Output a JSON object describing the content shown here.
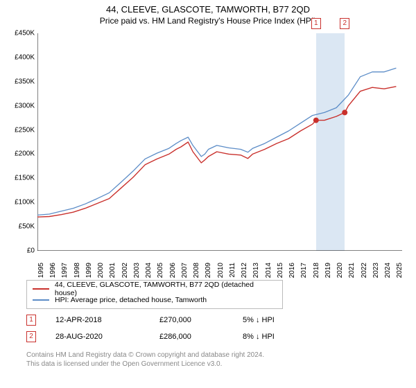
{
  "title": {
    "line1": "44, CLEEVE, GLASCOTE, TAMWORTH, B77 2QD",
    "line2": "Price paid vs. HM Land Registry's House Price Index (HPI)"
  },
  "chart": {
    "type": "line",
    "background_color": "#ffffff",
    "highlight_band_color": "#dbe7f3",
    "highlight_band_x": [
      2018.3,
      2020.7
    ],
    "xlim": [
      1995,
      2025.5
    ],
    "ylim": [
      0,
      450000
    ],
    "ytick_step": 50000,
    "yticks": [
      "£0",
      "£50K",
      "£100K",
      "£150K",
      "£200K",
      "£250K",
      "£300K",
      "£350K",
      "£400K",
      "£450K"
    ],
    "xticks": [
      "1995",
      "1996",
      "1997",
      "1998",
      "1999",
      "2000",
      "2001",
      "2002",
      "2003",
      "2004",
      "2005",
      "2006",
      "2007",
      "2008",
      "2009",
      "2010",
      "2011",
      "2012",
      "2013",
      "2014",
      "2015",
      "2016",
      "2017",
      "2018",
      "2019",
      "2020",
      "2021",
      "2022",
      "2023",
      "2024",
      "2025"
    ],
    "axis_color": "#000000",
    "axis_width": 1,
    "grid": false,
    "tick_fontsize": 10,
    "title_fontsize": 13,
    "subtitle_fontsize": 12,
    "series": {
      "red": {
        "label": "44, CLEEVE, GLASCOTE, TAMWORTH, B77 2QD (detached house)",
        "color": "#c9302c",
        "line_width": 1.4,
        "years": [
          1995,
          1996,
          1997,
          1998,
          1999,
          2000,
          2001,
          2002,
          2003,
          2004,
          2005,
          2006,
          2006.6,
          2007,
          2007.6,
          2008,
          2008.7,
          2009,
          2009.3,
          2010,
          2011,
          2012,
          2012.6,
          2013,
          2014,
          2015,
          2016,
          2017,
          2018,
          2018.3,
          2019,
          2020,
          2020.7,
          2021,
          2022,
          2023,
          2024,
          2025
        ],
        "values": [
          70000,
          71000,
          75000,
          80000,
          88000,
          98000,
          108000,
          130000,
          152000,
          178000,
          190000,
          200000,
          210000,
          215000,
          225000,
          205000,
          182000,
          188000,
          195000,
          205000,
          200000,
          198000,
          191000,
          200000,
          210000,
          222000,
          232000,
          248000,
          262000,
          270000,
          270000,
          278000,
          286000,
          300000,
          330000,
          338000,
          335000,
          340000
        ]
      },
      "blue": {
        "label": "HPI: Average price, detached house, Tamworth",
        "color": "#5b8cc7",
        "line_width": 1.3,
        "years": [
          1995,
          1996,
          1997,
          1998,
          1999,
          2000,
          2001,
          2002,
          2003,
          2004,
          2005,
          2006,
          2006.6,
          2007,
          2007.6,
          2008,
          2008.7,
          2009,
          2009.3,
          2010,
          2011,
          2012,
          2012.6,
          2013,
          2014,
          2015,
          2016,
          2017,
          2018,
          2019,
          2020,
          2021,
          2022,
          2023,
          2024,
          2025
        ],
        "values": [
          74000,
          76000,
          82000,
          88000,
          97000,
          108000,
          120000,
          142000,
          165000,
          190000,
          202000,
          212000,
          222000,
          228000,
          235000,
          218000,
          195000,
          200000,
          210000,
          218000,
          213000,
          210000,
          204000,
          212000,
          222000,
          235000,
          248000,
          264000,
          280000,
          286000,
          296000,
          322000,
          360000,
          370000,
          370000,
          378000
        ]
      }
    },
    "sale_markers": [
      {
        "num": "1",
        "x": 2018.3,
        "y": 270000,
        "box_x": 2018.3,
        "box_above": true
      },
      {
        "num": "2",
        "x": 2020.7,
        "y": 286000,
        "box_x": 2020.7,
        "box_above": true
      }
    ],
    "marker_dot_radius": 4,
    "marker_box_color": "#c9302c"
  },
  "legend": {
    "border_color": "#bbbbbb",
    "fontsize": 10.5
  },
  "sales_table": {
    "rows": [
      {
        "num": "1",
        "date": "12-APR-2018",
        "price": "£270,000",
        "diff": "5% ↓ HPI"
      },
      {
        "num": "2",
        "date": "28-AUG-2020",
        "price": "£286,000",
        "diff": "8% ↓ HPI"
      }
    ],
    "fontsize": 11
  },
  "footer": {
    "line1": "Contains HM Land Registry data © Crown copyright and database right 2024.",
    "line2": "This data is licensed under the Open Government Licence v3.0.",
    "color": "#888888",
    "fontsize": 10
  }
}
